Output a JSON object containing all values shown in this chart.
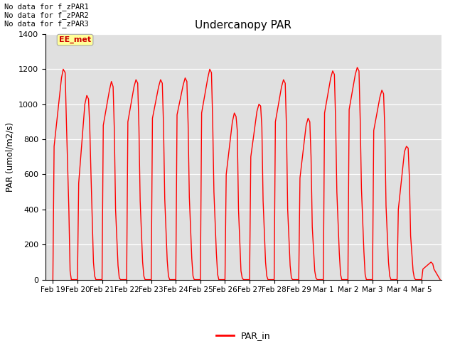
{
  "title": "Undercanopy PAR",
  "ylabel": "PAR (umol/m2/s)",
  "legend_label": "PAR_in",
  "no_data_texts": [
    "No data for f_zPAR1",
    "No data for f_zPAR2",
    "No data for f_zPAR3"
  ],
  "ee_met_label": "EE_met",
  "ylim": [
    0,
    1400
  ],
  "bg_color": "#e0e0e0",
  "line_color": "#ff0000",
  "tick_labels": [
    "Feb 19",
    "Feb 20",
    "Feb 21",
    "Feb 22",
    "Feb 23",
    "Feb 24",
    "Feb 25",
    "Feb 26",
    "Feb 27",
    "Feb 28",
    "Feb 29",
    "Mar 1",
    "Mar 2",
    "Mar 3",
    "Mar 4",
    "Mar 5"
  ],
  "time_values": [
    0.0,
    0.05,
    0.35,
    0.42,
    0.5,
    0.55,
    0.65,
    0.7,
    0.75,
    1.0,
    1.05,
    1.3,
    1.38,
    1.45,
    1.5,
    1.55,
    1.65,
    1.7,
    1.75,
    2.0,
    2.05,
    2.3,
    2.38,
    2.45,
    2.5,
    2.55,
    2.65,
    2.7,
    2.75,
    3.0,
    3.05,
    3.3,
    3.38,
    3.45,
    3.5,
    3.55,
    3.65,
    3.7,
    3.75,
    4.0,
    4.05,
    4.3,
    4.38,
    4.45,
    4.5,
    4.55,
    4.65,
    4.7,
    4.75,
    5.0,
    5.05,
    5.3,
    5.38,
    5.45,
    5.5,
    5.55,
    5.65,
    5.7,
    5.75,
    6.0,
    6.05,
    6.3,
    6.38,
    6.45,
    6.5,
    6.55,
    6.65,
    6.7,
    6.75,
    7.0,
    7.05,
    7.3,
    7.38,
    7.45,
    7.5,
    7.55,
    7.65,
    7.7,
    7.75,
    8.0,
    8.05,
    8.3,
    8.38,
    8.45,
    8.5,
    8.55,
    8.65,
    8.7,
    8.75,
    9.0,
    9.05,
    9.3,
    9.38,
    9.45,
    9.5,
    9.55,
    9.65,
    9.7,
    9.75,
    10.0,
    10.05,
    10.3,
    10.38,
    10.45,
    10.5,
    10.55,
    10.65,
    10.7,
    10.75,
    11.0,
    11.05,
    11.3,
    11.38,
    11.45,
    11.5,
    11.55,
    11.65,
    11.7,
    11.75,
    12.0,
    12.05,
    12.3,
    12.38,
    12.45,
    12.5,
    12.55,
    12.65,
    12.7,
    12.75,
    13.0,
    13.05,
    13.3,
    13.38,
    13.45,
    13.5,
    13.55,
    13.65,
    13.7,
    13.75,
    14.0,
    14.05,
    14.3,
    14.38,
    14.45,
    14.5,
    14.55,
    14.65,
    14.7,
    14.75,
    15.0,
    15.05,
    15.3,
    15.38,
    15.45,
    15.5,
    15.75
  ],
  "par_values": [
    0,
    760,
    1150,
    1200,
    1180,
    900,
    400,
    50,
    0,
    0,
    550,
    1000,
    1050,
    1030,
    870,
    600,
    100,
    20,
    0,
    0,
    880,
    1080,
    1130,
    1100,
    850,
    400,
    80,
    10,
    0,
    0,
    900,
    1100,
    1140,
    1120,
    870,
    450,
    100,
    20,
    0,
    0,
    920,
    1100,
    1140,
    1120,
    880,
    460,
    110,
    20,
    0,
    0,
    940,
    1110,
    1150,
    1130,
    890,
    470,
    120,
    20,
    0,
    0,
    950,
    1150,
    1200,
    1180,
    900,
    500,
    150,
    30,
    0,
    0,
    600,
    900,
    950,
    930,
    850,
    400,
    50,
    10,
    0,
    0,
    700,
    960,
    1000,
    990,
    870,
    450,
    100,
    20,
    0,
    0,
    900,
    1100,
    1140,
    1120,
    870,
    400,
    80,
    10,
    0,
    0,
    580,
    880,
    920,
    900,
    700,
    300,
    50,
    10,
    0,
    0,
    950,
    1150,
    1190,
    1170,
    900,
    500,
    150,
    30,
    0,
    0,
    970,
    1170,
    1210,
    1190,
    910,
    520,
    160,
    30,
    0,
    0,
    850,
    1040,
    1080,
    1060,
    860,
    420,
    100,
    20,
    0,
    0,
    400,
    730,
    760,
    750,
    580,
    250,
    50,
    10,
    0,
    0,
    60,
    90,
    100,
    90,
    60,
    0
  ],
  "xlim": [
    -0.3,
    15.8
  ],
  "yticks": [
    0,
    200,
    400,
    600,
    800,
    1000,
    1200,
    1400
  ]
}
